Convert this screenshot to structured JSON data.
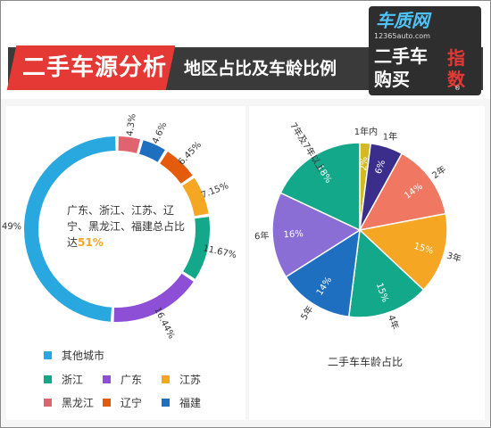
{
  "header": {
    "main_title": "二手车源分析",
    "subtitle": "地区占比及车龄比例",
    "logo": {
      "site_name": "车质网",
      "domain": "12365auto.com",
      "brand_line1": "二手车",
      "brand_line2": "购买",
      "brand_accent": "指数",
      "registered": "®"
    }
  },
  "left_chart": {
    "center_text_prefix": "广东、浙江、江苏、辽宁、黑龙江、福建总占比达",
    "center_text_value": "51%",
    "legend": [
      {
        "label": "其他城市",
        "color": "#29a8e0"
      },
      {
        "label": "浙江",
        "color": "#13a88a"
      },
      {
        "label": "广东",
        "color": "#8c4fd6"
      },
      {
        "label": "江苏",
        "color": "#f5a623"
      },
      {
        "label": "黑龙江",
        "color": "#e06470"
      },
      {
        "label": "辽宁",
        "color": "#e55b0c"
      },
      {
        "label": "福建",
        "color": "#1f6fc0"
      }
    ]
  },
  "right_chart": {
    "caption": "二手车车龄占比"
  },
  "chart_data": [
    {
      "type": "pie",
      "subtype": "donut",
      "title": "",
      "start": "top",
      "direction": "counterclockwise",
      "slices": [
        {
          "label": "其他城市",
          "value": 49,
          "label_text": "49%",
          "color": "#29a8e0"
        },
        {
          "label": "广东",
          "value": 16.44,
          "label_text": "16.44%",
          "color": "#8c4fd6"
        },
        {
          "label": "浙江",
          "value": 11.67,
          "label_text": "11.67%",
          "color": "#13a88a"
        },
        {
          "label": "江苏",
          "value": 7.15,
          "label_text": "7.15%",
          "color": "#f5a623"
        },
        {
          "label": "辽宁",
          "value": 6.45,
          "label_text": "6.45%",
          "color": "#e55b0c"
        },
        {
          "label": "福建",
          "value": 4.6,
          "label_text": "4.6%",
          "color": "#1f6fc0"
        },
        {
          "label": "黑龙江",
          "value": 4.3,
          "label_text": "4.3%",
          "color": "#e06470"
        }
      ]
    },
    {
      "type": "pie",
      "title": "二手车车龄占比",
      "start": "top",
      "direction": "clockwise",
      "slices": [
        {
          "label": "1年内",
          "value": 2,
          "label_text": "2%",
          "color": "#d4b826"
        },
        {
          "label": "1年",
          "value": 6,
          "label_text": "6%",
          "color": "#3b2d8c"
        },
        {
          "label": "2年",
          "value": 14,
          "label_text": "14%",
          "color": "#f07862"
        },
        {
          "label": "3年",
          "value": 15,
          "label_text": "15%",
          "color": "#f5a623"
        },
        {
          "label": "4年",
          "value": 15,
          "label_text": "15%",
          "color": "#13a88a"
        },
        {
          "label": "5年",
          "value": 14,
          "label_text": "14%",
          "color": "#1f6fc0"
        },
        {
          "label": "6年",
          "value": 16,
          "label_text": "16%",
          "color": "#8a6ed6"
        },
        {
          "label": "7年及7年以上",
          "value": 18,
          "label_text": "18%",
          "color": "#13a88a"
        }
      ]
    }
  ]
}
